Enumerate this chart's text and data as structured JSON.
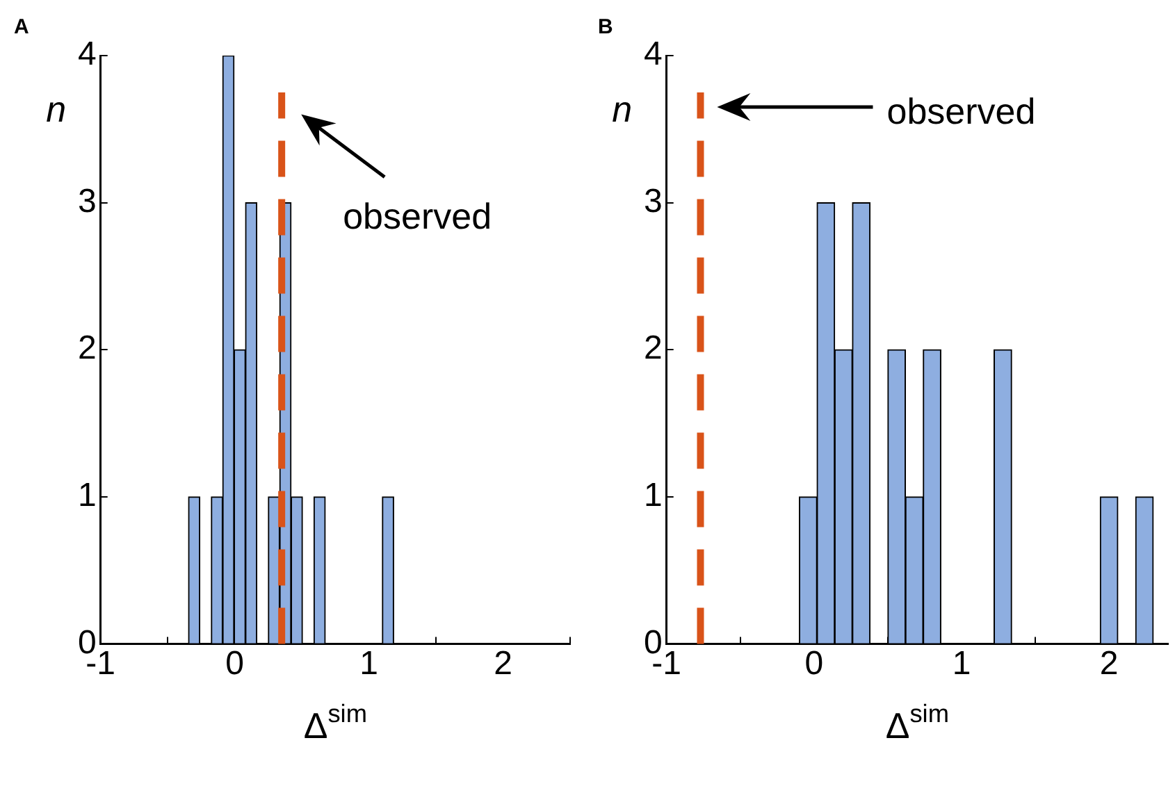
{
  "chart_data": [
    {
      "type": "histogram",
      "title": "A",
      "xlabel": "Δ$^{sim}$",
      "ylabel": "n",
      "bins": [
        -0.345,
        -0.26,
        -0.175,
        -0.09,
        -0.005,
        0.08,
        0.165,
        0.25,
        0.335,
        0.42,
        0.505,
        0.59,
        0.675,
        0.76,
        0.845,
        0.93,
        1.015,
        1.1,
        1.185
      ],
      "values": [
        1,
        0,
        1,
        4,
        2,
        3,
        0,
        1,
        3,
        1,
        0,
        1,
        0,
        0,
        0,
        0,
        0,
        1
      ],
      "color": "#8eaee0",
      "xlim": [
        -1,
        2.5
      ],
      "xticks": [
        -1,
        0,
        1,
        2
      ],
      "ylim": [
        0,
        4
      ],
      "yticks": [
        0,
        1,
        2,
        3,
        4
      ],
      "grid": false,
      "legend": false,
      "annotations": [
        "observed"
      ],
      "ref_lines": [
        {
          "axis": "x",
          "value": 0.35,
          "color": "#d95319",
          "line_style": "dashed"
        }
      ]
    },
    {
      "type": "histogram",
      "title": "B",
      "xlabel": "Δ$^{sim}$",
      "ylabel": "n",
      "bins": [
        -0.1,
        0.02,
        0.14,
        0.26,
        0.38,
        0.5,
        0.62,
        0.74,
        0.86,
        0.98,
        1.1,
        1.22,
        1.34,
        1.46,
        1.58,
        1.7,
        1.82,
        1.94,
        2.06,
        2.18,
        2.3
      ],
      "values": [
        1,
        3,
        2,
        3,
        0,
        2,
        1,
        2,
        0,
        0,
        0,
        2,
        0,
        0,
        0,
        0,
        0,
        1,
        0,
        1
      ],
      "color": "#8eaee0",
      "xlim": [
        -1,
        2.4
      ],
      "xticks": [
        -1,
        0,
        1,
        2
      ],
      "ylim": [
        0,
        4
      ],
      "yticks": [
        0,
        1,
        2,
        3,
        4
      ],
      "grid": false,
      "legend": false,
      "annotations": [
        "observed"
      ],
      "ref_lines": [
        {
          "axis": "x",
          "value": -0.77,
          "color": "#d95319",
          "line_style": "dashed"
        }
      ]
    }
  ]
}
